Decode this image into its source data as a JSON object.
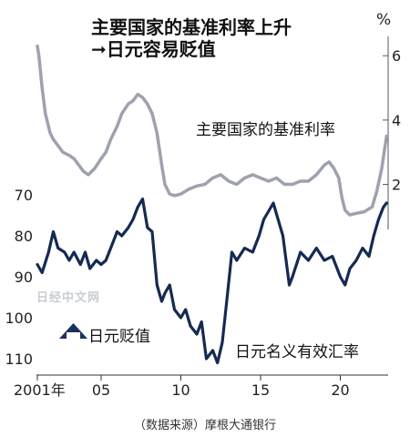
{
  "watermark": "日经中文网",
  "source": "（数据来源）摩根大通银行",
  "chart_data": {
    "type": "line",
    "title": [
      "主要国家的基准利率上升",
      "➞日元容易贬值"
    ],
    "unit": "%",
    "x_ticks": [
      "2001年",
      "05",
      "10",
      "15",
      "20"
    ],
    "x_tick_values": [
      2001,
      2005,
      2010,
      2015,
      2020
    ],
    "xlim": [
      2001,
      2023
    ],
    "right_axis": {
      "label": "%",
      "ticks": [
        2,
        4,
        6
      ],
      "range": [
        0.6,
        6.6
      ],
      "color": "#9ea2ae"
    },
    "left_axis": {
      "ticks": [
        70,
        80,
        90,
        100,
        110
      ],
      "range": [
        66,
        114
      ],
      "inverted": true,
      "color": "#152a52"
    },
    "up_arrow_label": "日元贬值",
    "series": [
      {
        "name": "主要国家的基准利率",
        "axis": "right",
        "color": "#9ea2ae",
        "x": [
          2001.0,
          2001.1,
          2001.3,
          2001.5,
          2001.8,
          2002.0,
          2002.3,
          2002.6,
          2003.0,
          2003.3,
          2003.6,
          2003.9,
          2004.2,
          2004.6,
          2005.0,
          2005.3,
          2005.6,
          2006.0,
          2006.3,
          2006.7,
          2007.0,
          2007.3,
          2007.6,
          2007.9,
          2008.2,
          2008.5,
          2008.8,
          2009.0,
          2009.3,
          2009.6,
          2010.0,
          2010.5,
          2011.0,
          2011.5,
          2012.0,
          2012.5,
          2013.0,
          2013.5,
          2014.0,
          2014.5,
          2015.0,
          2015.5,
          2016.0,
          2016.5,
          2017.0,
          2017.5,
          2018.0,
          2018.5,
          2019.0,
          2019.3,
          2019.6,
          2019.9,
          2020.1,
          2020.3,
          2020.6,
          2021.0,
          2021.5,
          2022.0,
          2022.3,
          2022.6,
          2022.9
        ],
        "y": [
          6.3,
          6.0,
          5.0,
          4.2,
          3.6,
          3.4,
          3.2,
          3.0,
          2.9,
          2.8,
          2.6,
          2.4,
          2.3,
          2.5,
          2.8,
          3.0,
          3.4,
          3.8,
          4.2,
          4.5,
          4.6,
          4.8,
          4.7,
          4.5,
          4.2,
          3.6,
          2.6,
          2.0,
          1.7,
          1.65,
          1.7,
          1.85,
          1.95,
          2.0,
          2.2,
          2.3,
          2.1,
          2.0,
          2.2,
          2.3,
          2.2,
          2.1,
          2.2,
          2.0,
          2.0,
          2.1,
          2.1,
          2.3,
          2.6,
          2.7,
          2.5,
          2.2,
          1.6,
          1.2,
          1.05,
          1.1,
          1.15,
          1.3,
          1.8,
          2.5,
          3.5
        ]
      },
      {
        "name": "日元名义有效汇率",
        "axis": "left",
        "color": "#152a52",
        "x": [
          2001.0,
          2001.3,
          2001.7,
          2002.0,
          2002.3,
          2002.7,
          2003.0,
          2003.3,
          2003.7,
          2004.0,
          2004.3,
          2004.7,
          2005.0,
          2005.3,
          2005.7,
          2006.0,
          2006.3,
          2006.7,
          2007.0,
          2007.3,
          2007.6,
          2007.9,
          2008.2,
          2008.5,
          2008.8,
          2009.0,
          2009.3,
          2009.6,
          2010.0,
          2010.3,
          2010.6,
          2011.0,
          2011.3,
          2011.6,
          2012.0,
          2012.3,
          2012.6,
          2012.9,
          2013.2,
          2013.5,
          2014.0,
          2014.5,
          2014.9,
          2015.2,
          2015.5,
          2015.8,
          2016.1,
          2016.4,
          2016.8,
          2017.0,
          2017.5,
          2018.0,
          2018.5,
          2019.0,
          2019.5,
          2020.0,
          2020.3,
          2020.6,
          2021.0,
          2021.4,
          2021.8,
          2022.1,
          2022.4,
          2022.7,
          2022.9
        ],
        "y": [
          87,
          89,
          84,
          79,
          83,
          84,
          86,
          84,
          87,
          84,
          88,
          86,
          87,
          86,
          82,
          79,
          80,
          78,
          76,
          73,
          71,
          78,
          79,
          92,
          96,
          94,
          92,
          98,
          100,
          98,
          102,
          104,
          101,
          110,
          108,
          111,
          106,
          95,
          84,
          86,
          83,
          84,
          80,
          76,
          74,
          72,
          76,
          80,
          92,
          90,
          84,
          86,
          83,
          86,
          85,
          90,
          92,
          88,
          86,
          83,
          85,
          80,
          76,
          73,
          72
        ]
      }
    ]
  }
}
